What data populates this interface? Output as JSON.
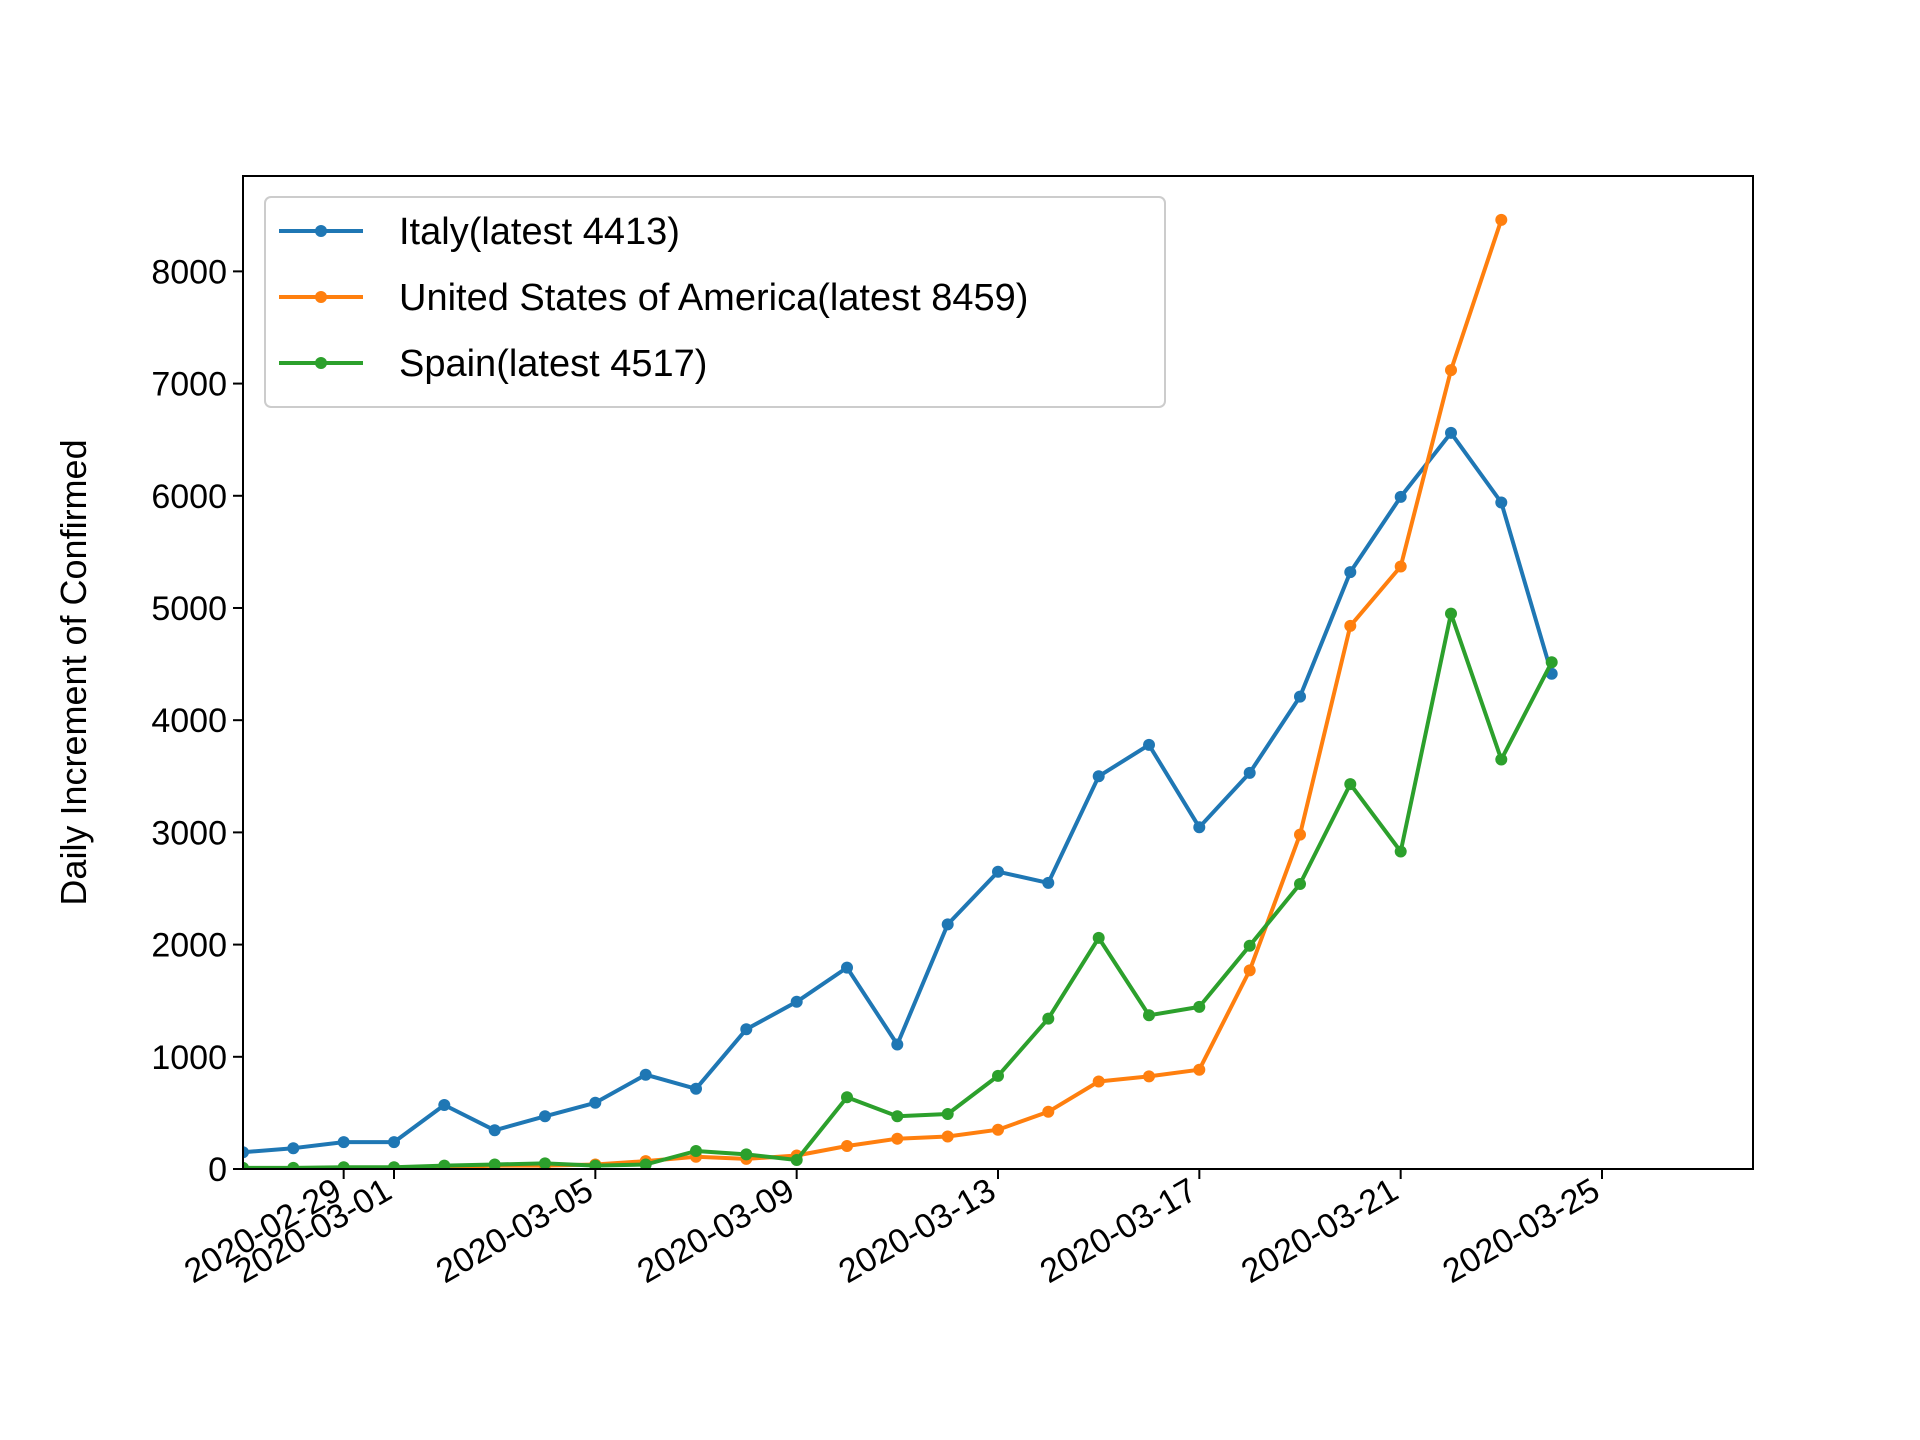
{
  "chart_data": {
    "type": "line",
    "title": "",
    "xlabel": "",
    "ylabel": "Daily Increment of Confirmed",
    "grid": false,
    "legend_position": "top-left",
    "xlim": [
      "2020-02-27",
      "2020-03-28"
    ],
    "ylim": [
      0,
      8850
    ],
    "x_ticks": [
      "2020-02-29",
      "2020-03-01",
      "2020-03-05",
      "2020-03-09",
      "2020-03-13",
      "2020-03-17",
      "2020-03-21",
      "2020-03-25"
    ],
    "y_ticks": [
      "0",
      "1000",
      "2000",
      "3000",
      "4000",
      "5000",
      "6000",
      "7000",
      "8000"
    ],
    "x": [
      "2020-02-27",
      "2020-02-28",
      "2020-02-29",
      "2020-03-01",
      "2020-03-02",
      "2020-03-03",
      "2020-03-04",
      "2020-03-05",
      "2020-03-06",
      "2020-03-07",
      "2020-03-08",
      "2020-03-09",
      "2020-03-10",
      "2020-03-11",
      "2020-03-12",
      "2020-03-13",
      "2020-03-14",
      "2020-03-15",
      "2020-03-16",
      "2020-03-17",
      "2020-03-18",
      "2020-03-19",
      "2020-03-20",
      "2020-03-21",
      "2020-03-22",
      "2020-03-23",
      "2020-03-24"
    ],
    "series": [
      {
        "name": "Italy(latest 4413)",
        "color": "#1f77b4",
        "values": [
          150,
          185,
          240,
          240,
          570,
          345,
          470,
          590,
          840,
          715,
          1245,
          1490,
          1795,
          1110,
          2180,
          2650,
          2550,
          3500,
          3780,
          3045,
          3530,
          4210,
          5320,
          5990,
          6560,
          5940,
          4413
        ]
      },
      {
        "name": "United States of America(latest 8459)",
        "color": "#ff7f0e",
        "values": [
          0,
          0,
          3,
          5,
          15,
          30,
          30,
          40,
          70,
          110,
          90,
          120,
          205,
          270,
          290,
          350,
          510,
          780,
          825,
          885,
          1770,
          2980,
          4840,
          5370,
          7120,
          8459,
          null
        ]
      },
      {
        "name": "Spain(latest 4517)",
        "color": "#2ca02c",
        "values": [
          10,
          10,
          15,
          15,
          30,
          40,
          50,
          30,
          40,
          160,
          130,
          80,
          640,
          470,
          490,
          830,
          1340,
          2060,
          1370,
          1445,
          1990,
          2540,
          3430,
          2830,
          4950,
          3650,
          4517
        ]
      }
    ]
  }
}
